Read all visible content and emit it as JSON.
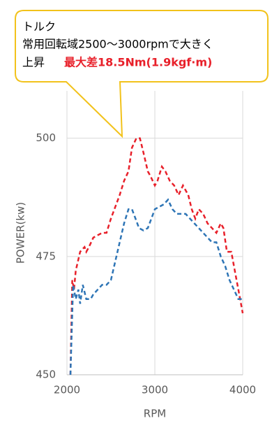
{
  "chart_data": {
    "type": "line",
    "annotation": [
      "トルク",
      "常用回転域2500～3000rpmで大きく",
      "上昇",
      "最大差18.5Nm(1.9kgf·m)"
    ],
    "xlabel": "RPM",
    "ylabel": "POWER(kw)",
    "xlim": [
      2000,
      4000
    ],
    "xticks": [
      2000,
      3000,
      4000
    ],
    "ylim": [
      450,
      510
    ],
    "yticks": [
      450,
      475,
      500
    ],
    "grid": true,
    "series": [
      {
        "color": "#e8202a",
        "x": [
          2040,
          2060,
          2080,
          2100,
          2150,
          2200,
          2220,
          2250,
          2300,
          2400,
          2450,
          2500,
          2560,
          2600,
          2650,
          2700,
          2740,
          2790,
          2830,
          2870,
          2920,
          2950,
          3000,
          3030,
          3080,
          3120,
          3170,
          3220,
          3270,
          3320,
          3380,
          3420,
          3460,
          3500,
          3550,
          3600,
          3650,
          3700,
          3750,
          3780,
          3820,
          3870,
          3920,
          3960,
          4000
        ],
        "values": [
          450,
          470,
          468,
          472,
          476,
          477,
          476,
          477,
          479,
          480,
          480,
          483,
          486,
          488,
          491,
          493,
          498,
          500,
          500,
          497,
          493,
          492,
          490,
          491,
          494,
          493,
          491,
          490,
          488,
          490,
          488,
          485,
          483,
          485,
          484,
          482,
          481,
          480,
          482,
          481,
          476,
          476,
          471,
          467,
          463
        ]
      },
      {
        "color": "#2e75b6",
        "x": [
          2040,
          2070,
          2100,
          2130,
          2150,
          2180,
          2220,
          2270,
          2300,
          2350,
          2400,
          2450,
          2500,
          2550,
          2600,
          2650,
          2700,
          2740,
          2780,
          2820,
          2870,
          2920,
          2960,
          3000,
          3050,
          3100,
          3150,
          3200,
          3250,
          3300,
          3350,
          3400,
          3450,
          3500,
          3550,
          3600,
          3650,
          3700,
          3750,
          3800,
          3850,
          3900,
          3950,
          4000
        ],
        "values": [
          450,
          469,
          466,
          468,
          465,
          469,
          466,
          466,
          467,
          468,
          469,
          469,
          470,
          474,
          478,
          482,
          485,
          485,
          483,
          481,
          480.5,
          481,
          483,
          485,
          485.5,
          486,
          487,
          485,
          484,
          484,
          484,
          483,
          482,
          481,
          480,
          479,
          478,
          478,
          475,
          473,
          470,
          468,
          466,
          466
        ]
      }
    ]
  }
}
